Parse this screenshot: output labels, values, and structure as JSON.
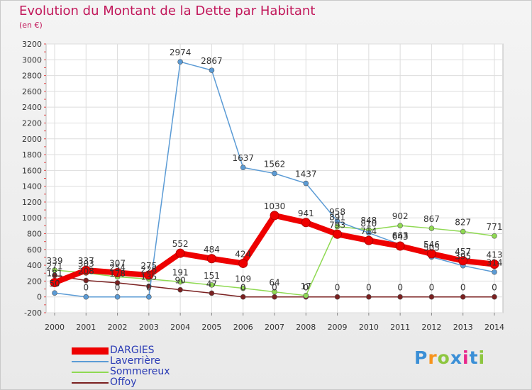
{
  "chart_data": {
    "type": "line",
    "title": "Evolution du Montant de la Dette par Habitant",
    "subtitle": "(en €)",
    "xlabel": "",
    "ylabel": "",
    "categories": [
      "2000",
      "2001",
      "2002",
      "2003",
      "2004",
      "2005",
      "2006",
      "2007",
      "2008",
      "2009",
      "2010",
      "2011",
      "2012",
      "2013",
      "2014"
    ],
    "ylim": [
      -200,
      3200
    ],
    "yticks": [
      -200,
      0,
      200,
      400,
      600,
      800,
      1000,
      1200,
      1400,
      1600,
      1800,
      2000,
      2200,
      2400,
      2600,
      2800,
      3000,
      3200
    ],
    "grid": true,
    "legend_position": "bottom-left",
    "series": [
      {
        "name": "DARGIES",
        "color": "#ee0000",
        "values": [
          181,
          337,
          307,
          275,
          552,
          484,
          424,
          1030,
          941,
          793,
          714,
          643,
          546,
          457,
          413
        ]
      },
      {
        "name": "Laverrière",
        "color": "#5b9bd5",
        "values": [
          50,
          0,
          0,
          0,
          2974,
          2867,
          1637,
          1562,
          1437,
          958,
          810,
          663,
          505,
          395,
          314
        ]
      },
      {
        "name": "Sommereux",
        "color": "#8fd952",
        "values": [
          339,
          303,
          254,
          226,
          191,
          151,
          109,
          64,
          17,
          891,
          848,
          902,
          867,
          827,
          771
        ]
      },
      {
        "name": "Offoy",
        "color": "#7a2020",
        "values": [
          271,
          208,
          178,
          135,
          90,
          47,
          0,
          0,
          0,
          0,
          0,
          0,
          0,
          0,
          0
        ]
      }
    ]
  },
  "logo": {
    "text": "Proxiti",
    "colors": [
      "#3b8fd6",
      "#f7941d",
      "#8dc63f",
      "#3b8fd6",
      "#e8268b",
      "#3b8fd6",
      "#8dc63f"
    ]
  }
}
